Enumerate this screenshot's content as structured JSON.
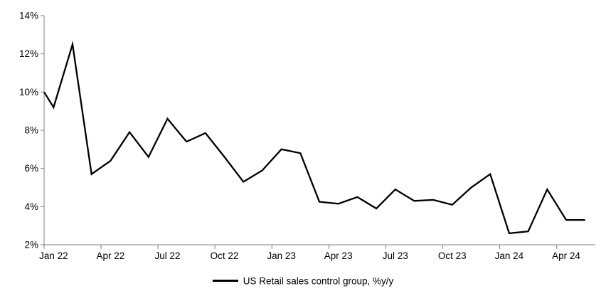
{
  "page": {
    "background": "#ffffff"
  },
  "legend": {
    "label": "US Retail sales control group, %y/y"
  },
  "chart_data": {
    "type": "line",
    "title": "",
    "xlabel": "",
    "ylabel": "",
    "grid": false,
    "legend_position": "bottom-center",
    "axis_color": "#808080",
    "text_color": "#000000",
    "ylim": [
      2,
      14
    ],
    "ytick_step": 2,
    "ytick_suffix": "%",
    "ytick_labels": [
      "2%",
      "4%",
      "6%",
      "8%",
      "10%",
      "12%",
      "14%"
    ],
    "xtick_every_months": 3,
    "xtick_labels": [
      "Jan 22",
      "Apr 22",
      "Jul 22",
      "Oct 22",
      "Jan 23",
      "Apr 23",
      "Jul 23",
      "Oct 23",
      "Jan 24",
      "Apr 24"
    ],
    "categories": [
      "Jan 22",
      "Feb 22",
      "Mar 22",
      "Apr 22",
      "May 22",
      "Jun 22",
      "Jul 22",
      "Aug 22",
      "Sep 22",
      "Oct 22",
      "Nov 22",
      "Dec 22",
      "Jan 23",
      "Feb 23",
      "Mar 23",
      "Apr 23",
      "May 23",
      "Jun 23",
      "Jul 23",
      "Aug 23",
      "Sep 23",
      "Oct 23",
      "Nov 23",
      "Dec 23",
      "Jan 24",
      "Feb 24",
      "Mar 24",
      "Apr 24",
      "May 24"
    ],
    "series": [
      {
        "name": "US Retail sales control group, %y/y",
        "color": "#000000",
        "line_width": 2.3,
        "values": [
          9.2,
          12.5,
          5.7,
          6.4,
          7.9,
          6.6,
          8.6,
          7.4,
          7.85,
          6.6,
          5.3,
          5.9,
          7.0,
          6.8,
          4.25,
          4.15,
          4.5,
          3.9,
          4.9,
          4.3,
          4.35,
          4.1,
          5.0,
          5.7,
          2.6,
          2.7,
          4.9,
          3.3,
          3.3
        ]
      }
    ],
    "left_edge_entry_value": 10.0
  }
}
